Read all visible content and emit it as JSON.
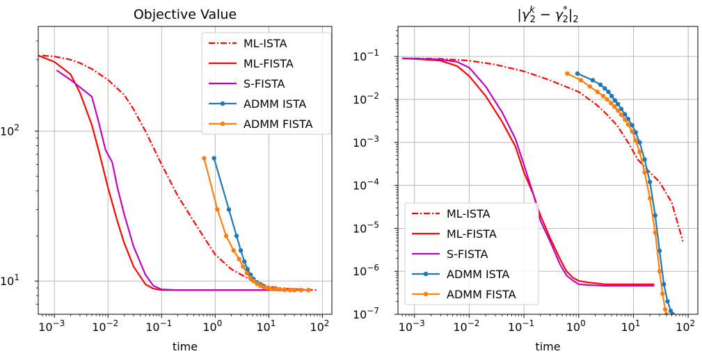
{
  "chart_data": [
    {
      "type": "line",
      "title": "Objective Value",
      "title_math": false,
      "xlabel": "time",
      "ylabel": "",
      "xscale": "log",
      "yscale": "log",
      "xlim": [
        0.0005,
        150
      ],
      "ylim": [
        6,
        500
      ],
      "xticks": [
        {
          "value": 0.001,
          "base": "10",
          "exp": "−3"
        },
        {
          "value": 0.01,
          "base": "10",
          "exp": "−2"
        },
        {
          "value": 0.1,
          "base": "10",
          "exp": "−1"
        },
        {
          "value": 1,
          "base": "10",
          "exp": "0"
        },
        {
          "value": 10,
          "base": "10",
          "exp": "1"
        },
        {
          "value": 100,
          "base": "10",
          "exp": "2"
        }
      ],
      "yticks": [
        {
          "value": 10,
          "base": "10",
          "exp": "1"
        },
        {
          "value": 100,
          "base": "10",
          "exp": "2"
        }
      ],
      "grid": true,
      "legend_position": "top-right",
      "series": [
        {
          "name": "ML-ISTA",
          "color": "#ff0000",
          "dash": "dashdot",
          "markers": false,
          "x": [
            0.0006,
            0.001,
            0.002,
            0.003,
            0.005,
            0.01,
            0.02,
            0.03,
            0.05,
            0.1,
            0.2,
            0.5,
            1,
            2,
            5,
            10,
            20,
            40,
            80
          ],
          "y": [
            320,
            315,
            300,
            285,
            260,
            220,
            175,
            140,
            100,
            60,
            37,
            22,
            15,
            12,
            10,
            9.2,
            8.9,
            8.8,
            8.7
          ]
        },
        {
          "name": "ML-FISTA",
          "color": "#ff0000",
          "dash": "solid",
          "markers": false,
          "x": [
            0.0005,
            0.001,
            0.002,
            0.003,
            0.005,
            0.007,
            0.01,
            0.015,
            0.02,
            0.03,
            0.05,
            0.07,
            0.1,
            0.2,
            0.5,
            1,
            5,
            20,
            60
          ],
          "y": [
            320,
            290,
            240,
            180,
            110,
            70,
            42,
            25,
            18,
            12.5,
            9.5,
            8.9,
            8.7,
            8.7,
            8.7,
            8.7,
            8.7,
            8.7,
            8.7
          ]
        },
        {
          "name": "S-FISTA",
          "color": "#bf00bf",
          "dash": "solid",
          "markers": false,
          "x": [
            0.0011,
            0.002,
            0.005,
            0.0065,
            0.009,
            0.012,
            0.015,
            0.02,
            0.03,
            0.05,
            0.07,
            0.1,
            0.2,
            0.5,
            1,
            5,
            20,
            60
          ],
          "y": [
            255,
            220,
            170,
            120,
            75,
            62,
            42,
            28,
            17,
            11,
            9.3,
            8.8,
            8.7,
            8.7,
            8.7,
            8.7,
            8.7,
            8.7
          ]
        },
        {
          "name": "ADMM ISTA",
          "color": "#1f77b4",
          "dash": "solid",
          "markers": true,
          "x": [
            0.95,
            1.8,
            2.5,
            3.0,
            3.5,
            4.0,
            4.6,
            5.2,
            6.0,
            7.0,
            8.0,
            9.5,
            11,
            13,
            16,
            20,
            25,
            30,
            40,
            55
          ],
          "y": [
            66,
            30,
            20,
            16,
            13.5,
            12,
            11,
            10.3,
            9.8,
            9.5,
            9.2,
            9.0,
            8.9,
            8.85,
            8.8,
            8.75,
            8.7,
            8.7,
            8.7,
            8.7
          ]
        },
        {
          "name": "ADMM FISTA",
          "color": "#ff7f0e",
          "dash": "solid",
          "markers": true,
          "x": [
            0.62,
            1.1,
            1.6,
            2.2,
            2.8,
            3.3,
            3.9,
            4.5,
            5.2,
            6.0,
            7.0,
            8.0,
            9.5,
            11,
            13,
            16,
            20,
            25,
            30,
            40,
            55
          ],
          "y": [
            66,
            30,
            20,
            16,
            14,
            12.5,
            11.3,
            10.5,
            10.0,
            9.6,
            9.3,
            9.1,
            9.0,
            8.9,
            8.85,
            8.8,
            8.75,
            8.7,
            8.7,
            8.7,
            8.7
          ]
        }
      ]
    },
    {
      "type": "line",
      "title": "|γ",
      "title_math": true,
      "xlabel": "time",
      "ylabel": "",
      "xscale": "log",
      "yscale": "log",
      "xlim": [
        0.0005,
        150
      ],
      "ylim": [
        1e-07,
        0.5
      ],
      "xticks": [
        {
          "value": 0.001,
          "base": "10",
          "exp": "−3"
        },
        {
          "value": 0.01,
          "base": "10",
          "exp": "−2"
        },
        {
          "value": 0.1,
          "base": "10",
          "exp": "−1"
        },
        {
          "value": 1,
          "base": "10",
          "exp": "0"
        },
        {
          "value": 10,
          "base": "10",
          "exp": "1"
        },
        {
          "value": 100,
          "base": "10",
          "exp": "2"
        }
      ],
      "yticks": [
        {
          "value": 1e-07,
          "base": "10",
          "exp": "−7"
        },
        {
          "value": 1e-06,
          "base": "10",
          "exp": "−6"
        },
        {
          "value": 1e-05,
          "base": "10",
          "exp": "−5"
        },
        {
          "value": 0.0001,
          "base": "10",
          "exp": "−4"
        },
        {
          "value": 0.001,
          "base": "10",
          "exp": "−3"
        },
        {
          "value": 0.01,
          "base": "10",
          "exp": "−2"
        },
        {
          "value": 0.1,
          "base": "10",
          "exp": "−1"
        }
      ],
      "grid": true,
      "legend_position": "bottom-left",
      "series": [
        {
          "name": "ML-ISTA",
          "color": "#ff0000",
          "dash": "dashdot",
          "markers": false,
          "x": [
            0.0006,
            0.001,
            0.003,
            0.01,
            0.03,
            0.1,
            0.3,
            1,
            2,
            3,
            5,
            8,
            12,
            20,
            30,
            50,
            80
          ],
          "y": [
            0.09,
            0.09,
            0.088,
            0.08,
            0.065,
            0.045,
            0.028,
            0.015,
            0.008,
            0.005,
            0.0025,
            0.001,
            0.0004,
            0.0002,
            0.00012,
            4e-05,
            5e-06
          ]
        },
        {
          "name": "ML-FISTA",
          "color": "#ff0000",
          "dash": "solid",
          "markers": false,
          "x": [
            0.0006,
            0.001,
            0.003,
            0.006,
            0.01,
            0.02,
            0.04,
            0.07,
            0.1,
            0.15,
            0.2,
            0.3,
            0.45,
            0.6,
            0.8,
            1,
            1.5,
            3,
            10,
            24
          ],
          "y": [
            0.09,
            0.088,
            0.08,
            0.06,
            0.035,
            0.012,
            0.003,
            0.0008,
            0.0002,
            6e-05,
            2e-05,
            6e-06,
            2e-06,
            1e-06,
            7e-07,
            6e-07,
            5.5e-07,
            5e-07,
            5e-07,
            5e-07
          ]
        },
        {
          "name": "S-FISTA",
          "color": "#bf00bf",
          "dash": "solid",
          "markers": false,
          "x": [
            0.0006,
            0.001,
            0.003,
            0.006,
            0.01,
            0.02,
            0.04,
            0.07,
            0.1,
            0.15,
            0.2,
            0.3,
            0.45,
            0.6,
            0.8,
            1,
            1.5,
            3,
            10,
            24
          ],
          "y": [
            0.09,
            0.089,
            0.085,
            0.075,
            0.055,
            0.02,
            0.005,
            0.0012,
            0.0003,
            6e-05,
            1.5e-05,
            5e-06,
            1.5e-06,
            8e-07,
            6e-07,
            5e-07,
            4.8e-07,
            4.6e-07,
            4.6e-07,
            4.6e-07
          ]
        },
        {
          "name": "ADMM ISTA",
          "color": "#1f77b4",
          "dash": "solid",
          "markers": true,
          "x": [
            0.95,
            1.8,
            2.5,
            3.0,
            3.5,
            4.0,
            4.6,
            5.2,
            6.0,
            7.0,
            8.0,
            9.5,
            11,
            13,
            16,
            20,
            25,
            30,
            36,
            42,
            48,
            52
          ],
          "y": [
            0.04,
            0.028,
            0.022,
            0.018,
            0.015,
            0.012,
            0.0095,
            0.0078,
            0.006,
            0.0045,
            0.0035,
            0.0025,
            0.0017,
            0.001,
            0.0004,
            0.00012,
            2e-05,
            3e-06,
            5e-07,
            2e-07,
            1.2e-07,
            1e-07
          ]
        },
        {
          "name": "ADMM FISTA",
          "color": "#ff7f0e",
          "dash": "solid",
          "markers": true,
          "x": [
            0.62,
            1.1,
            1.6,
            2.2,
            2.8,
            3.3,
            3.9,
            4.5,
            5.2,
            6.0,
            7.0,
            8.0,
            9.5,
            11,
            13,
            16,
            20,
            25,
            30,
            34,
            38,
            40
          ],
          "y": [
            0.04,
            0.028,
            0.02,
            0.015,
            0.012,
            0.01,
            0.0082,
            0.0068,
            0.0055,
            0.0044,
            0.0034,
            0.0026,
            0.0018,
            0.0011,
            0.0006,
            0.0002,
            5e-05,
            8e-06,
            1e-06,
            3e-07,
            1.3e-07,
            1e-07
          ]
        }
      ]
    }
  ]
}
